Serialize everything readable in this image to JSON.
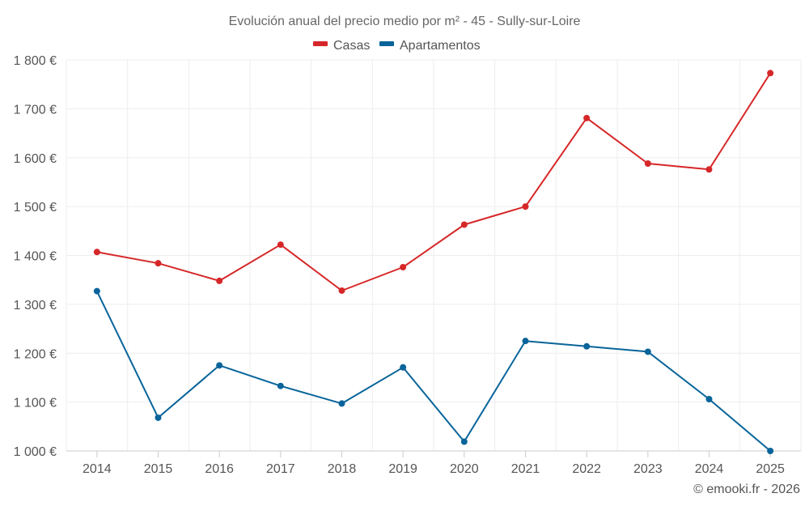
{
  "chart_data": {
    "type": "line",
    "title": "Evolución anual del precio medio por m² - 45 - Sully-sur-Loire",
    "xlabel": "",
    "ylabel": "",
    "categories": [
      "2014",
      "2015",
      "2016",
      "2017",
      "2018",
      "2019",
      "2020",
      "2021",
      "2022",
      "2023",
      "2024",
      "2025"
    ],
    "ylim": [
      1000,
      1800
    ],
    "yticks": [
      1000,
      1100,
      1200,
      1300,
      1400,
      1500,
      1600,
      1700,
      1800
    ],
    "ytick_labels": [
      "1 000 €",
      "1 100 €",
      "1 200 €",
      "1 300 €",
      "1 400 €",
      "1 500 €",
      "1 600 €",
      "1 700 €",
      "1 800 €"
    ],
    "grid": true,
    "legend_position": "top-center",
    "series": [
      {
        "name": "Casas",
        "color": "#d62728",
        "values": [
          1407,
          1384,
          1348,
          1422,
          1328,
          1376,
          1463,
          1500,
          1681,
          1588,
          1576,
          1773
        ]
      },
      {
        "name": "Apartamentos",
        "color": "#08649a",
        "values": [
          1327,
          1068,
          1175,
          1133,
          1097,
          1171,
          1019,
          1225,
          1214,
          1203,
          1106,
          1000
        ]
      }
    ]
  },
  "credit": "© emooki.fr - 2026"
}
